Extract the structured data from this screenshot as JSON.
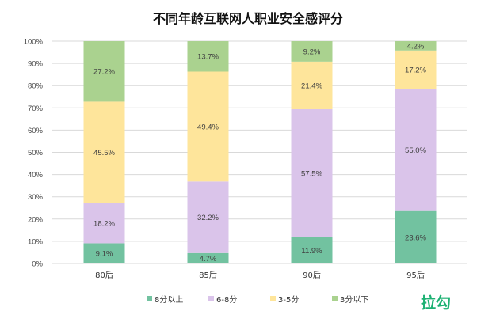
{
  "chart_data": {
    "type": "bar",
    "stacked": true,
    "title": "不同年龄互联网人职业安全感评分",
    "categories": [
      "80后",
      "85后",
      "90后",
      "95后"
    ],
    "ylim": [
      0,
      100
    ],
    "yticks": [
      "0%",
      "10%",
      "20%",
      "30%",
      "40%",
      "50%",
      "60%",
      "70%",
      "80%",
      "90%",
      "100%"
    ],
    "grid": true,
    "legend_position": "bottom",
    "series": [
      {
        "name": "8分以上",
        "color": "#72c2a0",
        "values": [
          9.1,
          4.7,
          11.9,
          23.6
        ]
      },
      {
        "name": "6-8分",
        "color": "#dac4ea",
        "values": [
          18.2,
          32.2,
          57.5,
          55.0
        ]
      },
      {
        "name": "3-5分",
        "color": "#fee59b",
        "values": [
          45.5,
          49.4,
          21.4,
          17.2
        ]
      },
      {
        "name": "3分以下",
        "color": "#aad28f",
        "values": [
          27.2,
          13.7,
          9.2,
          4.2
        ]
      }
    ]
  },
  "logo": "拉勾"
}
